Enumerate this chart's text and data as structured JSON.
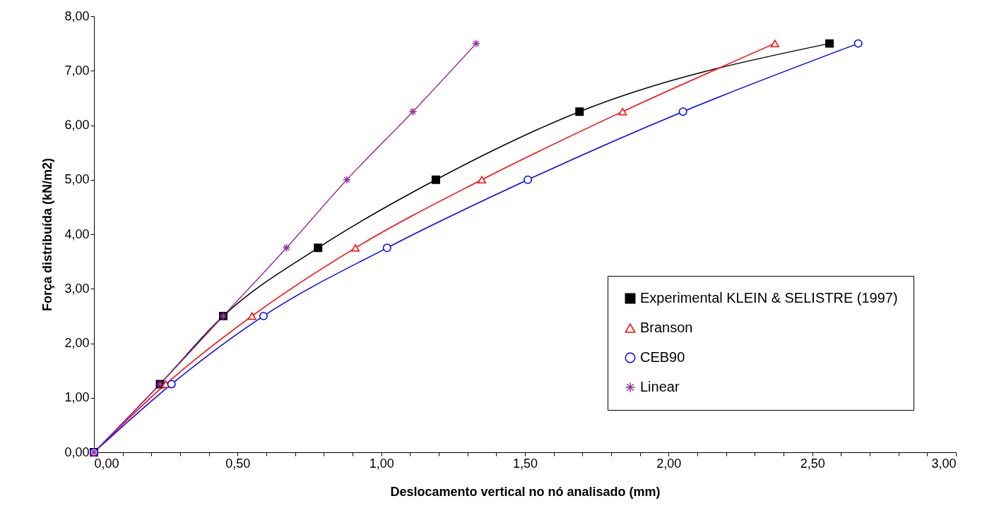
{
  "chart_data": {
    "type": "line",
    "xlabel": "Deslocamento vertical no nó analisado (mm)",
    "ylabel": "Força distribuída (kN/m2)",
    "xlim": [
      0,
      3
    ],
    "ylim": [
      0,
      8
    ],
    "xticks": [
      {
        "value": 0,
        "label": "0,00"
      },
      {
        "value": 0.1,
        "label": null
      },
      {
        "value": 0.2,
        "label": null
      },
      {
        "value": 0.3,
        "label": null
      },
      {
        "value": 0.4,
        "label": null
      },
      {
        "value": 0.5,
        "label": "0,50"
      },
      {
        "value": 0.6,
        "label": null
      },
      {
        "value": 0.7,
        "label": null
      },
      {
        "value": 0.8,
        "label": null
      },
      {
        "value": 0.9,
        "label": null
      },
      {
        "value": 1,
        "label": "1,00"
      },
      {
        "value": 1.1,
        "label": null
      },
      {
        "value": 1.2,
        "label": null
      },
      {
        "value": 1.3,
        "label": null
      },
      {
        "value": 1.4,
        "label": null
      },
      {
        "value": 1.5,
        "label": "1,50"
      },
      {
        "value": 1.6,
        "label": null
      },
      {
        "value": 1.7,
        "label": null
      },
      {
        "value": 1.8,
        "label": null
      },
      {
        "value": 1.9,
        "label": null
      },
      {
        "value": 2,
        "label": "2,00"
      },
      {
        "value": 2.1,
        "label": null
      },
      {
        "value": 2.2,
        "label": null
      },
      {
        "value": 2.3,
        "label": null
      },
      {
        "value": 2.4,
        "label": null
      },
      {
        "value": 2.5,
        "label": "2,50"
      },
      {
        "value": 2.6,
        "label": null
      },
      {
        "value": 2.7,
        "label": null
      },
      {
        "value": 2.8,
        "label": null
      },
      {
        "value": 2.9,
        "label": null
      },
      {
        "value": 3,
        "label": "3,00"
      }
    ],
    "yticks": [
      {
        "value": 0,
        "label": "0,00"
      },
      {
        "value": 1,
        "label": "1,00"
      },
      {
        "value": 2,
        "label": "2,00"
      },
      {
        "value": 3,
        "label": "3,00"
      },
      {
        "value": 4,
        "label": "4,00"
      },
      {
        "value": 5,
        "label": "5,00"
      },
      {
        "value": 6,
        "label": "6,00"
      },
      {
        "value": 7,
        "label": "7,00"
      },
      {
        "value": 8,
        "label": "8,00"
      }
    ],
    "grid": false,
    "legend": "bottom right",
    "line_style": "solid",
    "series": [
      {
        "name": "Experimental KLEIN & SELISTRE (1997)",
        "color": "#000000",
        "marker": "square",
        "x": [
          0,
          0.23,
          0.45,
          0.78,
          1.19,
          1.69,
          2.56
        ],
        "values": [
          0,
          1.25,
          2.5,
          3.75,
          5.0,
          6.25,
          7.5
        ]
      },
      {
        "name": "Branson",
        "color": "#ff0000",
        "marker": "triangle",
        "x": [
          0,
          0.25,
          0.55,
          0.91,
          1.35,
          1.84,
          2.37
        ],
        "values": [
          0,
          1.25,
          2.5,
          3.75,
          5.0,
          6.25,
          7.5
        ]
      },
      {
        "name": "CEB90",
        "color": "#0000ff",
        "marker": "circle",
        "x": [
          0,
          0.27,
          0.59,
          1.02,
          1.51,
          2.05,
          2.66
        ],
        "values": [
          0,
          1.25,
          2.5,
          3.75,
          5.0,
          6.25,
          7.5
        ]
      },
      {
        "name": "Linear",
        "color": "#993399",
        "marker": "cross",
        "x": [
          0,
          0.23,
          0.45,
          0.67,
          0.88,
          1.11,
          1.33
        ],
        "values": [
          0,
          1.25,
          2.5,
          3.75,
          5.0,
          6.25,
          7.5
        ]
      }
    ]
  }
}
